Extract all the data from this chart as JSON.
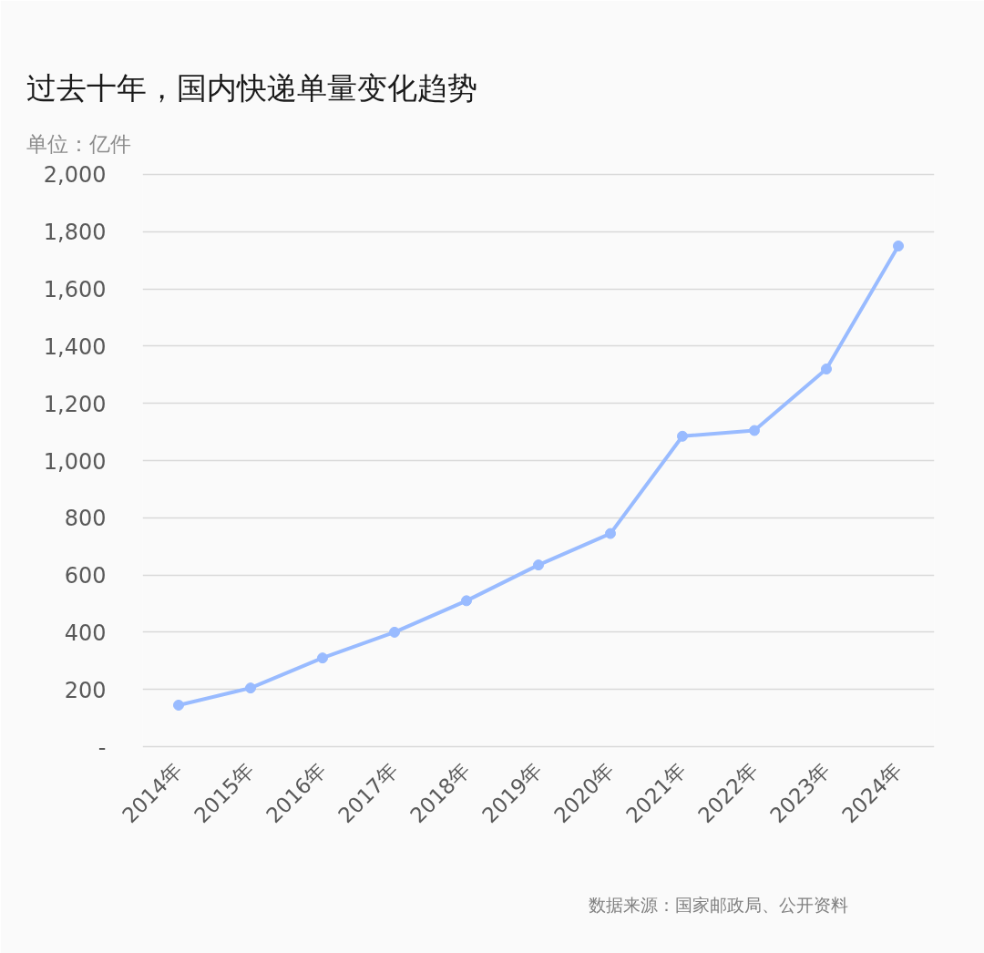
{
  "chart_data": {
    "type": "line",
    "title": "过去十年，国内快递单量变化趋势",
    "ylabel": "单位：亿件",
    "categories": [
      "2014年",
      "2015年",
      "2016年",
      "2017年",
      "2018年",
      "2019年",
      "2020年",
      "2021年",
      "2022年",
      "2023年",
      "2024年"
    ],
    "series": [
      {
        "color": "#99bbff",
        "values": [
          145,
          205,
          310,
          400,
          510,
          635,
          745,
          1085,
          1105,
          1320,
          1750
        ]
      }
    ],
    "ylim": [
      0,
      2000
    ],
    "yticks": [
      {
        "value": 0,
        "label": "-"
      },
      200,
      400,
      600,
      800,
      {
        "value": 1000,
        "label": "1,000"
      },
      {
        "value": 1200,
        "label": "1,200"
      },
      {
        "value": 1400,
        "label": "1,400"
      },
      {
        "value": 1600,
        "label": "1,600"
      },
      {
        "value": 1800,
        "label": "1,800"
      },
      {
        "value": 2000,
        "label": "2,000"
      }
    ],
    "grid": "y",
    "marker": "circle",
    "line_style": "solid",
    "annotations": [
      "数据来源：国家邮政局、公开资料"
    ]
  }
}
